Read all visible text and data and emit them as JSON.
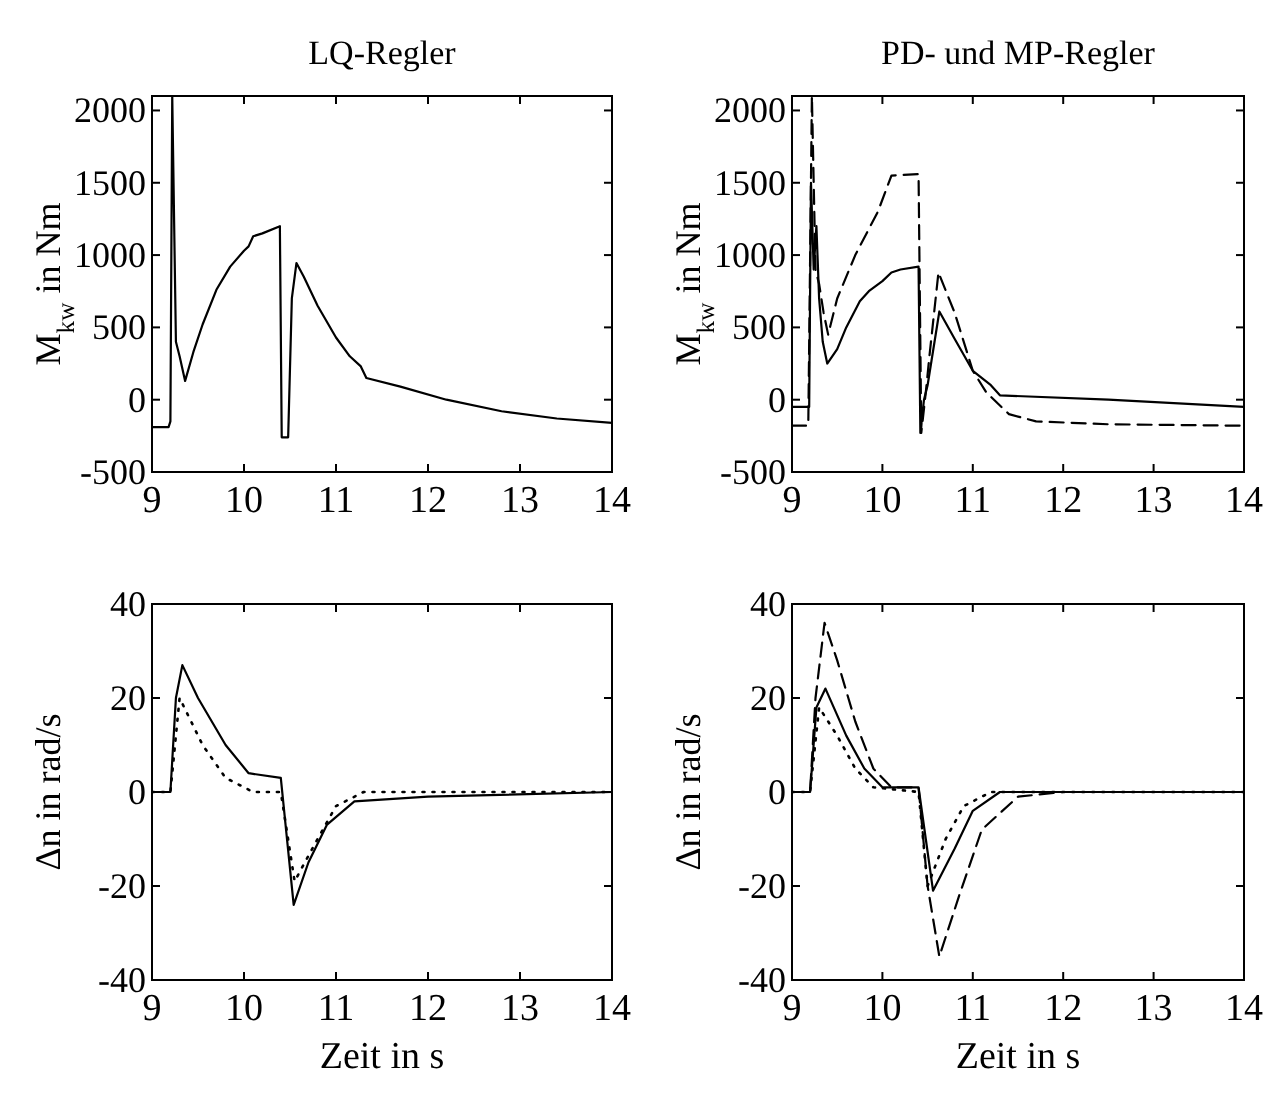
{
  "chart_data": [
    {
      "type": "line",
      "title": "LQ-Regler",
      "ylabel": "M$_{kw}$ in Nm",
      "xlim": [
        9,
        14
      ],
      "ylim": [
        -500,
        2100
      ],
      "xticks": [
        9,
        10,
        11,
        12,
        13,
        14
      ],
      "yticks": [
        -500,
        0,
        500,
        1000,
        1500,
        2000
      ],
      "series": [
        {
          "color": "#000000",
          "line_style": "solid",
          "x": [
            9,
            9.18,
            9.2,
            9.22,
            9.26,
            9.28,
            9.3,
            9.36,
            9.45,
            9.55,
            9.7,
            9.85,
            10.0,
            10.05,
            10.1,
            10.2,
            10.39,
            10.41,
            10.48,
            10.52,
            10.57,
            10.65,
            10.8,
            11.0,
            11.15,
            11.27,
            11.33,
            11.7,
            12.2,
            12.8,
            13.4,
            14
          ],
          "values": [
            -190,
            -190,
            -150,
            2100,
            400,
            350,
            300,
            130,
            330,
            520,
            760,
            920,
            1030,
            1060,
            1130,
            1150,
            1200,
            -260,
            -260,
            700,
            945,
            850,
            650,
            430,
            300,
            230,
            150,
            90,
            0,
            -80,
            -130,
            -160
          ]
        }
      ]
    },
    {
      "type": "line",
      "title": "PD- und MP-Regler",
      "ylabel": "M$_{kw}$ in Nm",
      "xlim": [
        9,
        14
      ],
      "ylim": [
        -500,
        2100
      ],
      "xticks": [
        9,
        10,
        11,
        12,
        13,
        14
      ],
      "yticks": [
        -500,
        0,
        500,
        1000,
        1500,
        2000
      ],
      "series": [
        {
          "color": "#000000",
          "line_style": "solid",
          "x": [
            9,
            9.19,
            9.21,
            9.24,
            9.27,
            9.3,
            9.34,
            9.39,
            9.5,
            9.6,
            9.75,
            9.85,
            10.0,
            10.1,
            10.2,
            10.4,
            10.42,
            10.46,
            10.5,
            10.63,
            10.8,
            11.0,
            11.2,
            11.3,
            12.5,
            14
          ],
          "values": [
            -50,
            -50,
            1500,
            900,
            1200,
            700,
            400,
            250,
            350,
            500,
            680,
            750,
            820,
            880,
            900,
            920,
            -230,
            0,
            100,
            610,
            420,
            200,
            100,
            30,
            0,
            -50
          ]
        },
        {
          "color": "#000000",
          "line_style": "dashed",
          "x": [
            9,
            9.18,
            9.22,
            9.26,
            9.3,
            9.35,
            9.4,
            9.5,
            9.7,
            9.95,
            10.1,
            10.4,
            10.43,
            10.48,
            10.52,
            10.62,
            10.8,
            11.0,
            11.15,
            11.4,
            11.7,
            12.5,
            14
          ],
          "values": [
            -180,
            -180,
            2100,
            900,
            800,
            600,
            450,
            700,
            1000,
            1300,
            1550,
            1560,
            -230,
            50,
            300,
            880,
            600,
            200,
            50,
            -100,
            -150,
            -170,
            -180
          ]
        }
      ]
    },
    {
      "type": "line",
      "xlabel": "Zeit in s",
      "ylabel": "Δn in rad/s",
      "xlim": [
        9,
        14
      ],
      "ylim": [
        -40,
        40
      ],
      "xticks": [
        9,
        10,
        11,
        12,
        13,
        14
      ],
      "yticks": [
        -40,
        -20,
        0,
        20,
        40
      ],
      "series": [
        {
          "color": "#000000",
          "line_style": "solid",
          "x": [
            9,
            9.2,
            9.26,
            9.33,
            9.5,
            9.8,
            10.05,
            10.4,
            10.54,
            10.7,
            10.9,
            11.2,
            12,
            14
          ],
          "values": [
            0,
            0,
            20,
            27,
            20,
            10,
            4,
            3,
            -24,
            -15,
            -7,
            -2,
            -1,
            0
          ]
        },
        {
          "color": "#000000",
          "line_style": "dotted",
          "x": [
            9,
            9.2,
            9.3,
            9.55,
            9.8,
            10.1,
            10.4,
            10.55,
            10.8,
            11.0,
            11.3,
            14
          ],
          "values": [
            0,
            0,
            20,
            10,
            3,
            0,
            0,
            -19,
            -10,
            -3,
            0,
            0
          ]
        }
      ]
    },
    {
      "type": "line",
      "xlabel": "Zeit in s",
      "ylabel": "Δn in rad/s",
      "xlim": [
        9,
        14
      ],
      "ylim": [
        -40,
        40
      ],
      "xticks": [
        9,
        10,
        11,
        12,
        13,
        14
      ],
      "yticks": [
        -40,
        -20,
        0,
        20,
        40
      ],
      "series": [
        {
          "color": "#000000",
          "line_style": "solid",
          "x": [
            9,
            9.2,
            9.27,
            9.37,
            9.6,
            9.8,
            10.0,
            10.4,
            10.48,
            10.56,
            10.8,
            11.0,
            11.3,
            14
          ],
          "values": [
            0,
            0,
            18,
            22,
            12,
            5,
            1,
            1,
            -10,
            -21,
            -12,
            -4,
            0,
            0
          ]
        },
        {
          "color": "#000000",
          "line_style": "dashed",
          "x": [
            9,
            9.2,
            9.26,
            9.36,
            9.5,
            9.7,
            9.9,
            10.1,
            10.4,
            10.5,
            10.63,
            10.85,
            11.1,
            11.5,
            12,
            14
          ],
          "values": [
            0,
            0,
            20,
            36,
            28,
            15,
            5,
            1,
            1,
            -20,
            -35,
            -22,
            -8,
            -1,
            0,
            0
          ]
        },
        {
          "color": "#000000",
          "line_style": "dotted",
          "x": [
            9,
            9.2,
            9.3,
            9.5,
            9.7,
            9.9,
            10.4,
            10.5,
            10.7,
            10.9,
            11.2,
            14
          ],
          "values": [
            0,
            0,
            18,
            12,
            5,
            1,
            0,
            -20,
            -10,
            -3,
            0,
            0
          ]
        }
      ]
    }
  ]
}
